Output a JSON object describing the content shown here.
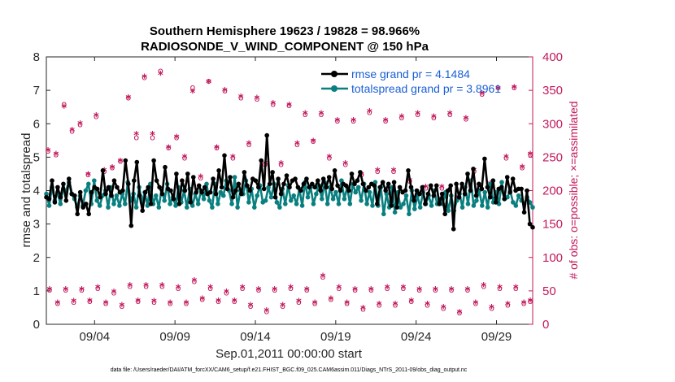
{
  "chart_data": {
    "type": "line",
    "title": "Southern Hemisphere 19623 / 19828 = 98.966%",
    "subtitle": "RADIOSONDE_V_WIND_COMPONENT @ 150 hPa",
    "xlabel": "Sep.01,2011 00:00:00 start",
    "ylabel": "rmse and totalspread",
    "ylabel_right": "# of obs: o=possible; ×=assimilated",
    "xlim": [
      1,
      31.25
    ],
    "ylim": [
      0,
      8
    ],
    "ylim_right": [
      0,
      400
    ],
    "x_ticks": [
      {
        "value": 4,
        "label": "09/04"
      },
      {
        "value": 9,
        "label": "09/09"
      },
      {
        "value": 14,
        "label": "09/14"
      },
      {
        "value": 19,
        "label": "09/19"
      },
      {
        "value": 24,
        "label": "09/24"
      },
      {
        "value": 29,
        "label": "09/29"
      }
    ],
    "y_ticks": [
      "0",
      "1",
      "2",
      "3",
      "4",
      "5",
      "6",
      "7",
      "8"
    ],
    "y_ticks_right": [
      "0",
      "50",
      "100",
      "150",
      "200",
      "250",
      "300",
      "350",
      "400"
    ],
    "legend": [
      "rmse grand pr = 4.1484",
      "totalspread grand pr = 3.8961"
    ],
    "legend_position": "top-right",
    "colors": {
      "rmse": "#000000",
      "totalspread": "#0a7f7f",
      "obs": "#c2185b"
    },
    "series": [
      {
        "name": "rmse",
        "values": [
          3.8,
          3.75,
          4.3,
          3.65,
          4.1,
          3.8,
          4.2,
          3.7,
          4.35,
          3.9,
          3.85,
          3.3,
          3.95,
          3.5,
          3.6,
          3.3,
          3.95,
          4.1,
          4.05,
          3.8,
          4.6,
          3.9,
          4.1,
          3.85,
          4.3,
          4.1,
          3.95,
          4.0,
          4.9,
          4.2,
          2.95,
          4.3,
          4.85,
          3.85,
          3.4,
          3.95,
          4.1,
          3.6,
          4.9,
          4.3,
          4.1,
          3.9,
          4.7,
          4.05,
          4.0,
          3.75,
          4.5,
          3.6,
          4.3,
          4.0,
          4.5,
          3.65,
          4.4,
          3.95,
          4.15,
          3.95,
          4.1,
          3.9,
          3.95,
          4.35,
          3.9,
          4.6,
          4.1,
          5.05,
          4.05,
          4.4,
          3.8,
          4.0,
          4.2,
          3.9,
          4.55,
          4.15,
          4.0,
          4.35,
          4.3,
          4.1,
          4.9,
          4.05,
          5.65,
          4.2,
          4.55,
          3.8,
          4.35,
          3.9,
          4.2,
          4.45,
          4.1,
          4.3,
          4.35,
          4.1,
          4.0,
          4.2,
          4.35,
          4.1,
          4.2,
          4.1,
          4.3,
          4.0,
          4.35,
          4.1,
          4.4,
          4.05,
          4.6,
          4.15,
          4.0,
          4.2,
          4.15,
          4.0,
          4.5,
          4.2,
          4.3,
          4.55,
          4.2,
          4.0,
          4.1,
          4.2,
          4.15,
          3.6,
          4.1,
          4.25,
          4.0,
          4.2,
          3.55,
          4.25,
          3.5,
          4.1,
          3.95,
          4.0,
          4.6,
          4.1,
          3.7,
          4.0,
          3.9,
          4.1,
          3.6,
          3.9,
          4.15,
          3.85,
          4.15,
          3.6,
          3.9,
          3.3,
          4.0,
          4.15,
          2.85,
          4.2,
          3.8,
          4.2,
          3.9,
          4.5,
          4.0,
          4.65,
          3.85,
          4.2,
          4.05,
          4.95,
          4.1,
          3.8,
          4.3,
          3.65,
          4.05,
          4.1,
          3.75,
          4.4,
          3.95,
          4.35,
          4.0,
          4.05,
          4.05,
          3.35,
          4.0,
          3.0,
          2.9
        ]
      },
      {
        "name": "totalspread",
        "values": [
          3.9,
          3.55,
          4.1,
          3.7,
          3.95,
          3.6,
          4.05,
          4.0,
          4.25,
          3.9,
          3.75,
          3.5,
          3.85,
          3.55,
          4.0,
          4.2,
          3.6,
          4.3,
          3.7,
          3.55,
          3.85,
          4.0,
          3.5,
          4.1,
          3.6,
          3.85,
          3.55,
          3.9,
          3.6,
          4.25,
          3.7,
          3.9,
          3.5,
          4.1,
          3.65,
          3.95,
          3.55,
          4.2,
          3.6,
          3.85,
          3.5,
          4.05,
          3.7,
          4.2,
          3.6,
          3.8,
          3.55,
          4.1,
          3.65,
          4.0,
          3.5,
          4.05,
          3.55,
          3.9,
          3.6,
          4.0,
          3.75,
          4.2,
          3.7,
          3.5,
          4.2,
          3.6,
          3.95,
          3.85,
          4.3,
          4.0,
          3.6,
          4.4,
          3.5,
          4.0,
          3.9,
          4.3,
          3.65,
          4.05,
          3.5,
          3.85,
          4.15,
          3.65,
          3.7,
          4.1,
          3.8,
          4.2,
          3.65,
          3.5,
          4.05,
          3.6,
          4.15,
          3.7,
          3.85,
          3.6,
          4.05,
          3.55,
          4.25,
          3.8,
          4.1,
          3.6,
          3.9,
          4.15,
          3.75,
          4.25,
          3.6,
          4.1,
          3.75,
          3.95,
          3.6,
          4.3,
          3.75,
          4.1,
          3.6,
          4.2,
          3.95,
          4.1,
          3.7,
          4.2,
          3.6,
          3.95,
          3.55,
          4.25,
          3.55,
          4.1,
          3.3,
          3.9,
          3.5,
          4.1,
          3.35,
          3.95,
          3.5,
          3.6,
          3.85,
          3.3,
          4.0,
          3.45,
          3.85,
          3.5,
          3.95,
          3.6,
          3.85,
          3.55,
          4.0,
          3.6,
          3.75,
          3.6,
          3.95,
          3.4,
          3.85,
          3.4,
          3.7,
          3.9,
          3.5,
          4.1,
          3.6,
          4.3,
          3.55,
          3.7,
          4.0,
          3.55,
          3.95,
          3.5,
          4.2,
          3.65,
          3.95,
          3.6,
          4.25,
          3.75,
          3.8,
          4.0,
          3.65,
          3.55,
          3.85,
          3.7,
          3.6,
          3.8,
          3.65,
          3.5
        ]
      },
      {
        "name": "obs possible (o)",
        "x": [
          1.1,
          1.6,
          2.1,
          2.6,
          3.1,
          3.6,
          4.1,
          4.6,
          5.1,
          5.6,
          6.1,
          6.6,
          7.1,
          7.6,
          8.1,
          8.6,
          9.1,
          9.6,
          10.1,
          10.6,
          11.1,
          11.6,
          12.1,
          12.6,
          13.1,
          13.6,
          14.1,
          14.6,
          15.1,
          15.6,
          16.1,
          16.6,
          17.1,
          17.6,
          18.1,
          18.6,
          19.1,
          19.6,
          20.1,
          20.6,
          21.1,
          21.6,
          22.1,
          22.6,
          23.1,
          23.6,
          24.1,
          24.6,
          25.1,
          25.6,
          26.1,
          26.6,
          27.1,
          27.6,
          28.1,
          28.6,
          29.1,
          29.6,
          30.1,
          30.6,
          31.1
        ],
        "values": [
          260,
          255,
          330,
          290,
          300,
          225,
          312,
          230,
          235,
          245,
          340,
          280,
          370,
          280,
          380,
          265,
          280,
          250,
          355,
          220,
          365,
          265,
          350,
          250,
          340,
          270,
          338,
          240,
          330,
          240,
          328,
          270,
          315,
          275,
          315,
          250,
          305,
          240,
          305,
          225,
          318,
          230,
          305,
          230,
          310,
          215,
          315,
          205,
          310,
          205,
          315,
          190,
          308,
          230,
          345,
          210,
          355,
          250,
          355,
          235,
          255
        ]
      },
      {
        "name": "obs assimilated (×)",
        "x": [
          1.1,
          1.6,
          2.1,
          2.6,
          3.1,
          3.6,
          4.1,
          4.6,
          5.1,
          5.6,
          6.1,
          6.6,
          7.1,
          7.6,
          8.1,
          8.6,
          9.1,
          9.6,
          10.1,
          10.6,
          11.1,
          11.6,
          12.1,
          12.6,
          13.1,
          13.6,
          14.1,
          14.6,
          15.1,
          15.6,
          16.1,
          16.6,
          17.1,
          17.6,
          18.1,
          18.6,
          19.1,
          19.6,
          20.1,
          20.6,
          21.1,
          21.6,
          22.1,
          22.6,
          23.1,
          23.6,
          24.1,
          24.6,
          25.1,
          25.6,
          26.1,
          26.6,
          27.1,
          27.6,
          28.1,
          28.6,
          29.1,
          29.6,
          30.1,
          30.6,
          31.1
        ],
        "values": [
          258,
          252,
          323,
          288,
          298,
          222,
          310,
          228,
          232,
          242,
          337,
          282,
          368,
          282,
          372,
          262,
          278,
          248,
          345,
          218,
          360,
          262,
          348,
          248,
          338,
          268,
          336,
          238,
          328,
          238,
          326,
          268,
          313,
          272,
          313,
          248,
          303,
          238,
          303,
          222,
          316,
          228,
          303,
          228,
          308,
          213,
          313,
          203,
          308,
          203,
          313,
          188,
          306,
          228,
          343,
          208,
          350,
          248,
          352,
          233,
          252
        ]
      },
      {
        "name": "obs possible low (o)",
        "x": [
          1.2,
          1.7,
          2.2,
          2.7,
          3.2,
          3.7,
          4.2,
          4.7,
          5.2,
          5.7,
          6.2,
          6.7,
          7.2,
          7.7,
          8.2,
          8.7,
          9.2,
          9.7,
          10.2,
          10.7,
          11.2,
          11.7,
          12.2,
          12.7,
          13.2,
          13.7,
          14.2,
          14.7,
          15.2,
          15.7,
          16.2,
          16.7,
          17.2,
          17.7,
          18.2,
          18.7,
          19.2,
          19.7,
          20.2,
          20.7,
          21.2,
          21.7,
          22.2,
          22.7,
          23.2,
          23.7,
          24.2,
          24.7,
          25.2,
          25.7,
          26.2,
          26.7,
          27.2,
          27.7,
          28.2,
          28.7,
          29.2,
          29.7,
          30.2,
          30.7,
          31.1
        ],
        "values": [
          52,
          32,
          52,
          34,
          52,
          35,
          55,
          32,
          48,
          28,
          58,
          35,
          58,
          34,
          58,
          32,
          55,
          32,
          65,
          38,
          55,
          35,
          48,
          35,
          55,
          28,
          52,
          20,
          52,
          28,
          55,
          34,
          52,
          32,
          72,
          38,
          55,
          32,
          52,
          24,
          52,
          30,
          55,
          30,
          55,
          35,
          52,
          30,
          52,
          25,
          52,
          18,
          52,
          32,
          58,
          25,
          55,
          30,
          55,
          32,
          35
        ]
      },
      {
        "name": "obs assimilated low (×)",
        "x": [
          1.2,
          1.7,
          2.2,
          2.7,
          3.2,
          3.7,
          4.2,
          4.7,
          5.2,
          5.7,
          6.2,
          6.7,
          7.2,
          7.7,
          8.2,
          8.7,
          9.2,
          9.7,
          10.2,
          10.7,
          11.2,
          11.7,
          12.2,
          12.7,
          13.2,
          13.7,
          14.2,
          14.7,
          15.2,
          15.7,
          16.2,
          16.7,
          17.2,
          17.7,
          18.2,
          18.7,
          19.2,
          19.7,
          20.2,
          20.7,
          21.2,
          21.7,
          22.2,
          22.7,
          23.2,
          23.7,
          24.2,
          24.7,
          25.2,
          25.7,
          26.2,
          26.7,
          27.2,
          27.7,
          28.2,
          28.7,
          29.2,
          29.7,
          30.2,
          30.7,
          31.1
        ],
        "values": [
          50,
          30,
          50,
          32,
          50,
          33,
          53,
          30,
          46,
          26,
          56,
          33,
          56,
          32,
          56,
          30,
          53,
          30,
          63,
          36,
          53,
          33,
          46,
          33,
          53,
          26,
          50,
          18,
          50,
          26,
          53,
          32,
          50,
          30,
          70,
          36,
          53,
          30,
          50,
          22,
          50,
          28,
          53,
          28,
          53,
          33,
          50,
          28,
          50,
          23,
          50,
          16,
          50,
          30,
          56,
          23,
          53,
          28,
          53,
          30,
          33
        ]
      }
    ]
  },
  "footer": "data file: /Users/raeder/DAI/ATM_forcXX/CAM6_setup/f.e21.FHIST_BGC.f09_025.CAM6assim.011/Diags_NTrS_2011-09/obs_diag_output.nc"
}
